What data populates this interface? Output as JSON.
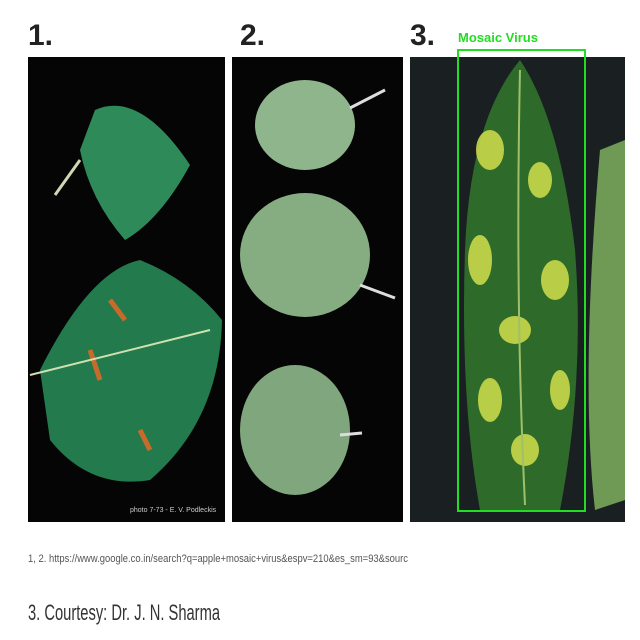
{
  "panels": [
    {
      "number": "1.",
      "credit": "photo 7-73 - E. V. Podleckis"
    },
    {
      "number": "2."
    },
    {
      "number": "3."
    }
  ],
  "detection": {
    "label": "Mosaic Virus"
  },
  "footer": {
    "source": "1, 2. https://www.google.co.in/search?q=apple+mosaic+virus&espv=210&es_sm=93&sourc",
    "courtesy": "3. Courtesy: Dr. J. N. Sharma"
  }
}
